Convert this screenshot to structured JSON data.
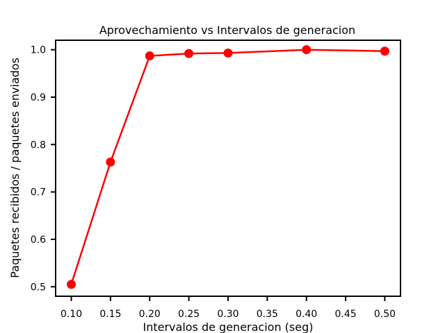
{
  "chart_data": {
    "type": "line",
    "title": "Aprovechamiento vs Intervalos de generacion",
    "xlabel": "Intervalos de generacion (seg)",
    "ylabel": "Paquetes recibidos / paquetes enviados",
    "x": [
      0.1,
      0.15,
      0.2,
      0.25,
      0.3,
      0.4,
      0.5
    ],
    "series": [
      {
        "values": [
          0.505,
          0.763,
          0.987,
          0.992,
          0.993,
          1.0,
          0.997
        ],
        "color": "#ff0000"
      }
    ],
    "xlim": [
      0.08,
      0.52
    ],
    "ylim": [
      0.48,
      1.02
    ],
    "xticks": [
      "0.10",
      "0.15",
      "0.20",
      "0.25",
      "0.30",
      "0.35",
      "0.40",
      "0.45",
      "0.50"
    ],
    "yticks": [
      "0.5",
      "0.6",
      "0.7",
      "0.8",
      "0.9",
      "1.0"
    ],
    "grid": false,
    "legend": "none"
  }
}
